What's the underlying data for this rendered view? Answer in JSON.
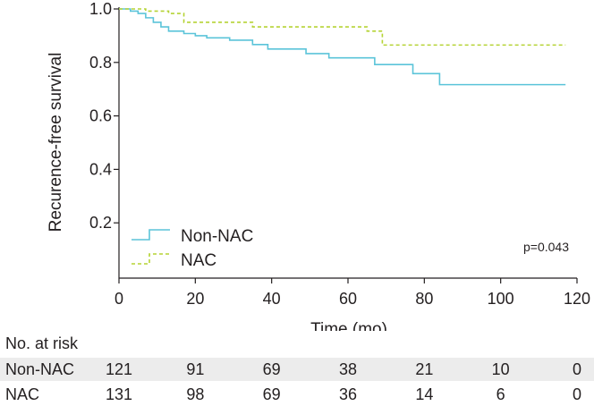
{
  "chart_data": {
    "type": "line",
    "ylabel": "Recurence-free survival",
    "xlabel": "Time (mo)",
    "xlim": [
      0,
      120
    ],
    "ylim": [
      0,
      1.0
    ],
    "xticks": [
      0,
      20,
      40,
      60,
      80,
      100,
      120
    ],
    "yticks": [
      0.2,
      0.4,
      0.6,
      0.8,
      1.0
    ],
    "ytick_labels": [
      "0.2",
      "0.4",
      "0.6",
      "0.8",
      "1.0"
    ],
    "annotation": "p=0.043",
    "legend_position": "lower-left",
    "series": [
      {
        "name": "Non-NAC",
        "color": "#5bc4d9",
        "style": "solid",
        "steps": [
          [
            0,
            1.0
          ],
          [
            3,
            0.992
          ],
          [
            5,
            0.983
          ],
          [
            7,
            0.967
          ],
          [
            9,
            0.95
          ],
          [
            11,
            0.933
          ],
          [
            13,
            0.917
          ],
          [
            17,
            0.908
          ],
          [
            20,
            0.9
          ],
          [
            23,
            0.892
          ],
          [
            29,
            0.883
          ],
          [
            35,
            0.867
          ],
          [
            39,
            0.85
          ],
          [
            49,
            0.833
          ],
          [
            55,
            0.817
          ],
          [
            67,
            0.792
          ],
          [
            77,
            0.758
          ],
          [
            84,
            0.717
          ],
          [
            117,
            0.717
          ]
        ]
      },
      {
        "name": "NAC",
        "color": "#b5d334",
        "style": "dashed",
        "steps": [
          [
            0,
            1.0
          ],
          [
            7,
            0.992
          ],
          [
            13,
            0.983
          ],
          [
            17,
            0.95
          ],
          [
            35,
            0.933
          ],
          [
            65,
            0.917
          ],
          [
            69,
            0.865
          ],
          [
            117,
            0.865
          ]
        ]
      }
    ]
  },
  "risk_table": {
    "title": "No. at risk",
    "times": [
      0,
      20,
      40,
      60,
      80,
      100,
      120
    ],
    "rows": [
      {
        "label": "Non-NAC",
        "values": [
          "121",
          "91",
          "69",
          "38",
          "21",
          "10",
          "0"
        ]
      },
      {
        "label": "NAC",
        "values": [
          "131",
          "98",
          "69",
          "36",
          "14",
          "6",
          "0"
        ]
      }
    ]
  }
}
